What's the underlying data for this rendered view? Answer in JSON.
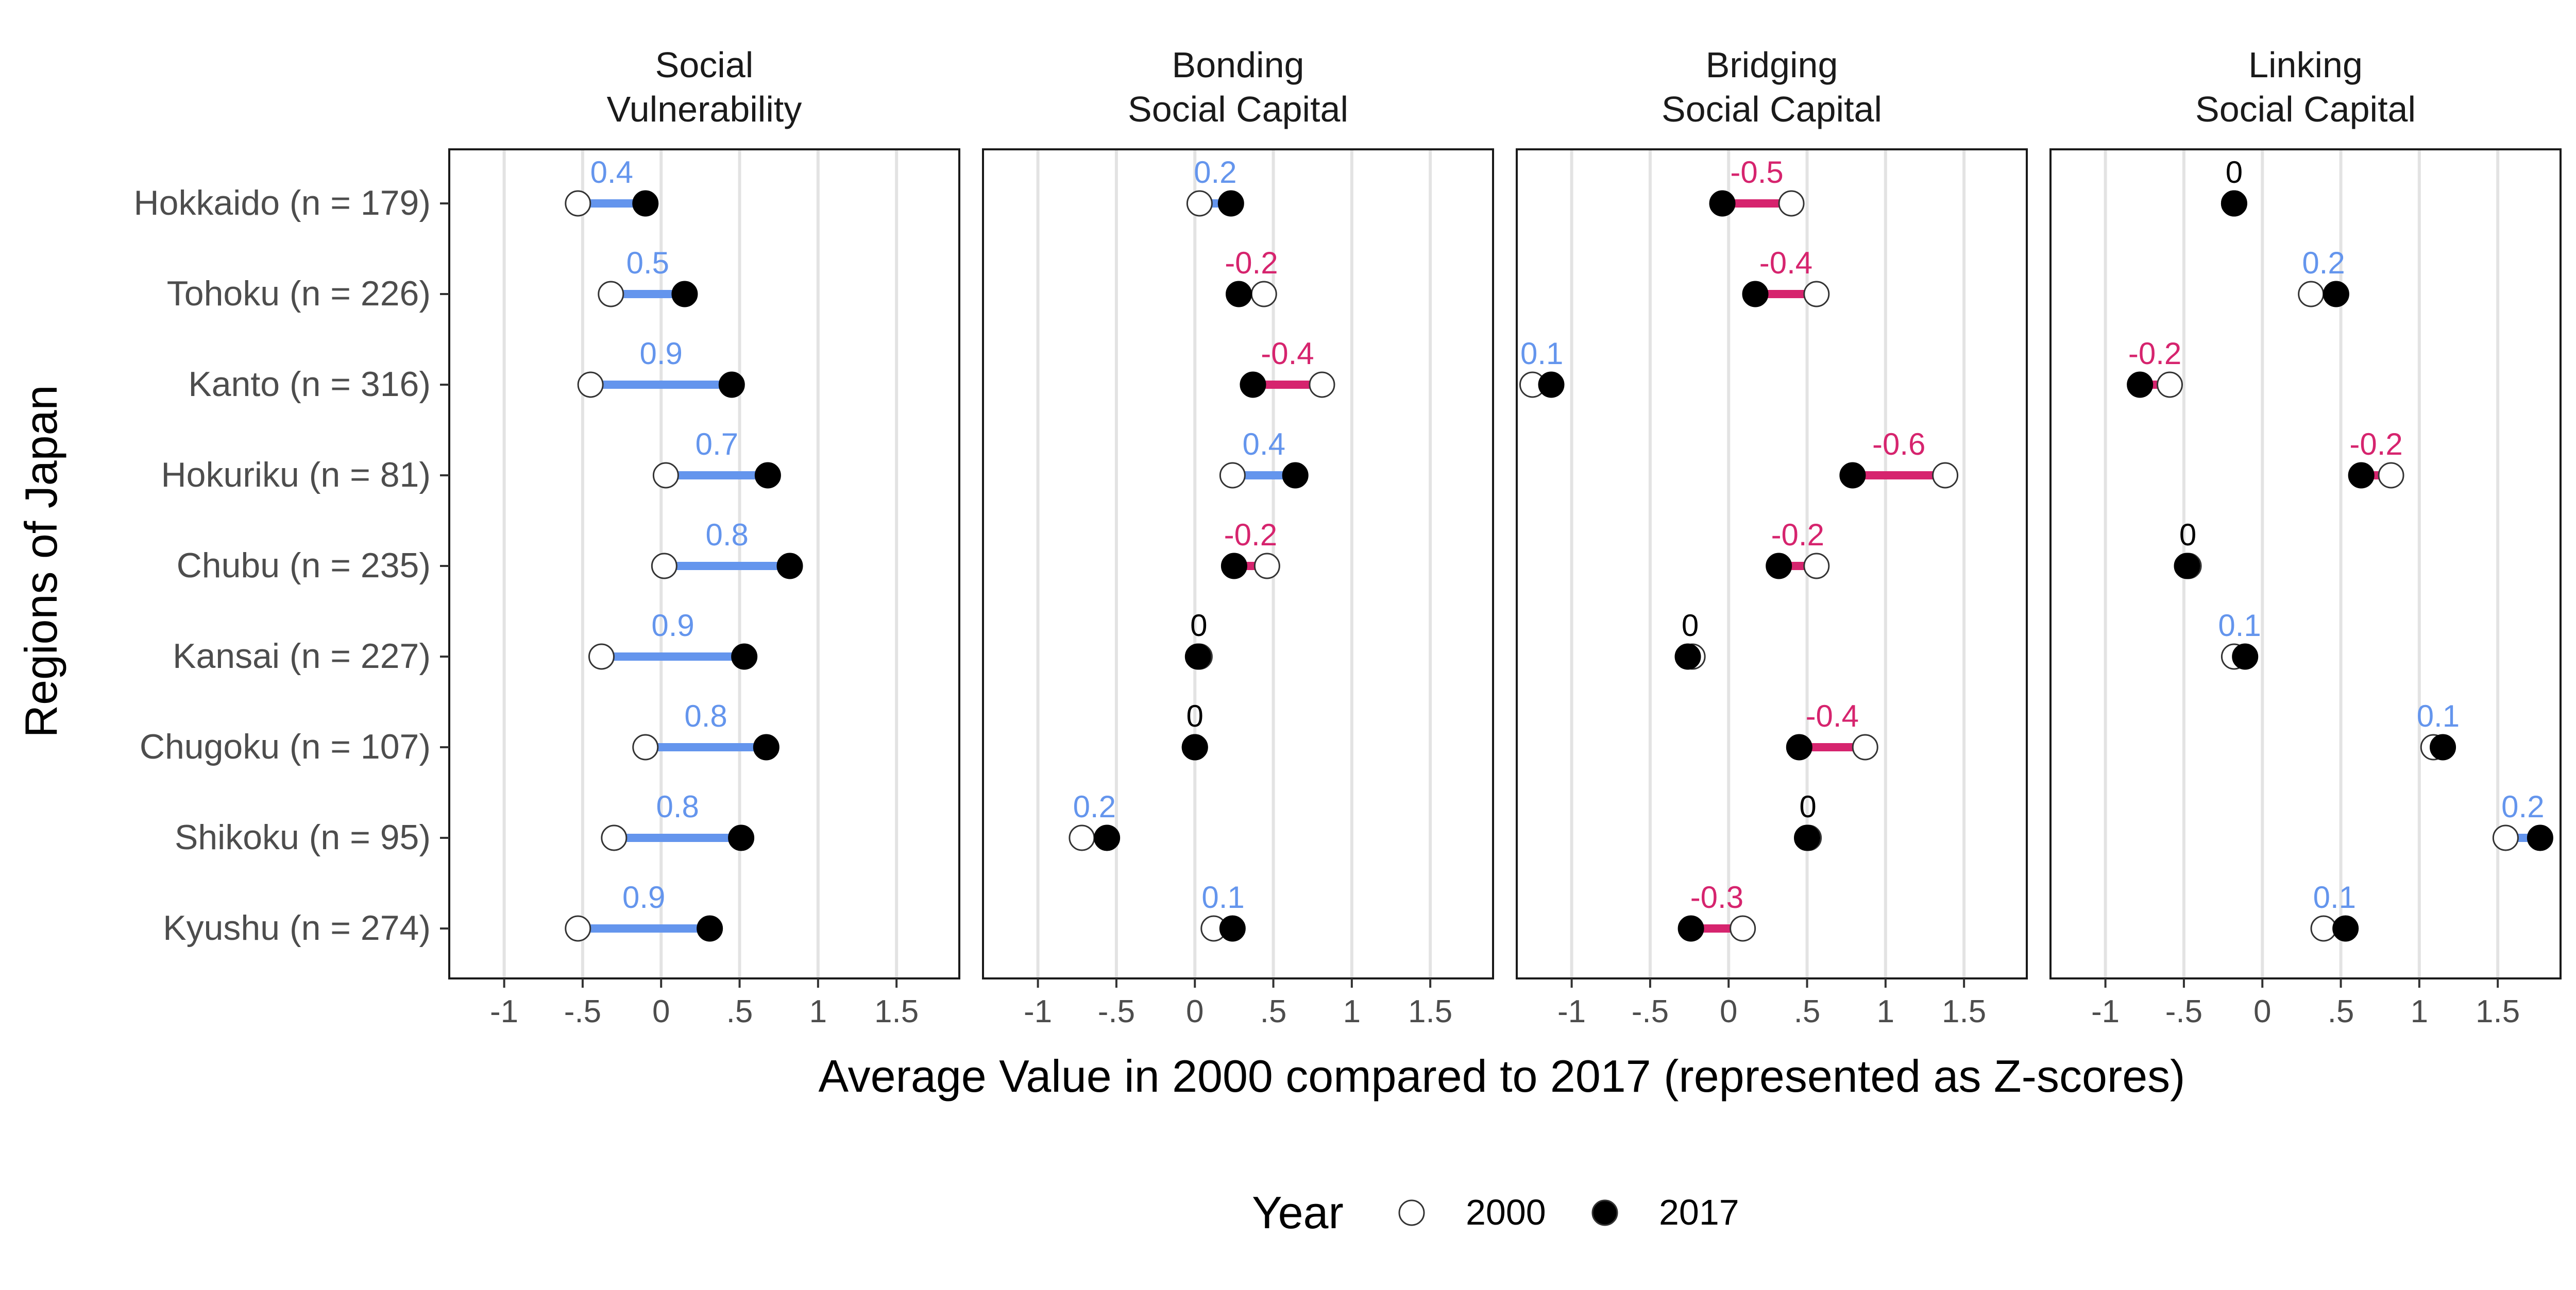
{
  "chart_data": {
    "type": "dumbbell",
    "ylabel": "Regions of Japan",
    "xlabel": "Average Value in 2000 compared to 2017 (represented as Z-scores)",
    "regions": [
      "Hokkaido (n = 179)",
      "Tohoku (n = 226)",
      "Kanto (n = 316)",
      "Hokuriku (n = 81)",
      "Chubu (n = 235)",
      "Kansai (n = 227)",
      "Chugoku (n = 107)",
      "Shikoku (n = 95)",
      "Kyushu (n = 274)"
    ],
    "xlim": [
      -1.35,
      1.9
    ],
    "x_ticks": [
      -1,
      -0.5,
      0,
      0.5,
      1,
      1.5
    ],
    "x_tick_labels": [
      "-1",
      "-.5",
      "0",
      ".5",
      "1",
      "1.5"
    ],
    "grid": true,
    "colors": {
      "increase": "#6495ED",
      "decrease": "#D6246E",
      "no_change": "#000000",
      "point_2000": "#ffffff",
      "point_2017": "#000000"
    },
    "legend": {
      "title": "Year",
      "position": "bottom",
      "entries": [
        {
          "label": "2000",
          "fill": "#ffffff"
        },
        {
          "label": "2017",
          "fill": "#000000"
        }
      ]
    },
    "panels": [
      {
        "title_lines": [
          "Social",
          "Vulnerability"
        ],
        "y2000": [
          -0.53,
          -0.32,
          -0.45,
          0.03,
          0.02,
          -0.38,
          -0.1,
          -0.3,
          -0.53
        ],
        "y2017": [
          -0.1,
          0.15,
          0.45,
          0.68,
          0.82,
          0.53,
          0.67,
          0.51,
          0.31
        ],
        "labels": [
          "0.4",
          "0.5",
          "0.9",
          "0.7",
          "0.8",
          "0.9",
          "0.8",
          "0.8",
          "0.9"
        ],
        "direction": [
          "up",
          "up",
          "up",
          "up",
          "up",
          "up",
          "up",
          "up",
          "up"
        ]
      },
      {
        "title_lines": [
          "Bonding",
          "Social Capital"
        ],
        "y2000": [
          0.03,
          0.44,
          0.81,
          0.24,
          0.46,
          0.03,
          0.0,
          -0.72,
          0.12
        ],
        "y2017": [
          0.23,
          0.28,
          0.37,
          0.64,
          0.25,
          0.02,
          0.0,
          -0.56,
          0.24
        ],
        "labels": [
          "0.2",
          "-0.2",
          "-0.4",
          "0.4",
          "-0.2",
          "0",
          "0",
          "0.2",
          "0.1"
        ],
        "direction": [
          "up",
          "down",
          "down",
          "up",
          "down",
          "zero",
          "zero",
          "up",
          "up"
        ]
      },
      {
        "title_lines": [
          "Bridging",
          "Social Capital"
        ],
        "y2000": [
          0.4,
          0.56,
          -1.25,
          1.38,
          0.56,
          -0.23,
          0.87,
          0.51,
          0.09
        ],
        "y2017": [
          -0.04,
          0.17,
          -1.13,
          0.79,
          0.32,
          -0.26,
          0.45,
          0.5,
          -0.24
        ],
        "labels": [
          "-0.5",
          "-0.4",
          "0.1",
          "-0.6",
          "-0.2",
          "0",
          "-0.4",
          "0",
          "-0.3"
        ],
        "direction": [
          "down",
          "down",
          "up",
          "down",
          "down",
          "zero",
          "down",
          "zero",
          "down"
        ]
      },
      {
        "title_lines": [
          "Linking",
          "Social Capital"
        ],
        "y2000": [
          -0.18,
          0.31,
          -0.59,
          0.82,
          -0.47,
          -0.18,
          1.09,
          1.55,
          0.39
        ],
        "y2017": [
          -0.18,
          0.47,
          -0.78,
          0.63,
          -0.48,
          -0.11,
          1.15,
          1.77,
          0.53
        ],
        "labels": [
          "0",
          "0.2",
          "-0.2",
          "-0.2",
          "0",
          "0.1",
          "0.1",
          "0.2",
          "0.1"
        ],
        "direction": [
          "zero",
          "up",
          "down",
          "down",
          "zero",
          "up",
          "up",
          "up",
          "up"
        ]
      }
    ]
  }
}
